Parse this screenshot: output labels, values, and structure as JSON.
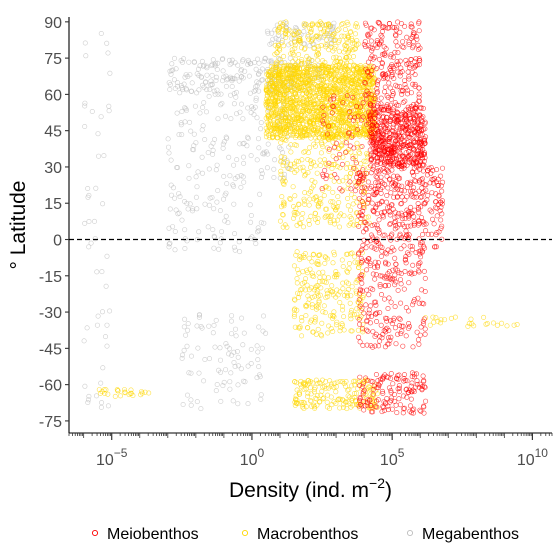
{
  "chart_data": {
    "type": "scatter",
    "title": "",
    "xlabel": "Density (ind. m",
    "xlabel_superscript": "−2",
    "xlabel_suffix": ")",
    "ylabel": "° Latitude",
    "x_scale": "log10",
    "xlim": [
      3e-07,
      50000000000.0
    ],
    "ylim": [
      -80,
      92
    ],
    "x_ticks": [
      {
        "value": 1e-05,
        "base": "10",
        "exp": "−5"
      },
      {
        "value": 1,
        "base": "10",
        "exp": "0"
      },
      {
        "value": 100000,
        "base": "10",
        "exp": "5"
      },
      {
        "value": 10000000000,
        "base": "10",
        "exp": "10"
      }
    ],
    "y_ticks": [
      90,
      75,
      60,
      45,
      30,
      15,
      0,
      -15,
      -30,
      -45,
      -60,
      -75
    ],
    "reference_line": {
      "y": 0,
      "style": "dashed",
      "color": "#000000"
    },
    "grid": false,
    "legend_position": "bottom",
    "series": [
      {
        "name": "Meiobenthos",
        "color": "#ff0000",
        "marker": "open-circle",
        "clusters": [
          {
            "log10_x_min": 4.2,
            "log10_x_max": 6.2,
            "lat_min": 30,
            "lat_max": 55,
            "count": 520
          },
          {
            "log10_x_min": 3.8,
            "log10_x_max": 6.8,
            "lat_min": -5,
            "lat_max": 30,
            "count": 340
          },
          {
            "log10_x_min": 4.0,
            "log10_x_max": 6.0,
            "lat_min": 55,
            "lat_max": 90,
            "count": 220
          },
          {
            "log10_x_min": 3.8,
            "log10_x_max": 6.2,
            "lat_min": -45,
            "lat_max": -5,
            "count": 200
          },
          {
            "log10_x_min": 3.8,
            "log10_x_max": 6.2,
            "lat_min": -72,
            "lat_max": -55,
            "count": 140
          },
          {
            "log10_x_min": 2.5,
            "log10_x_max": 4.5,
            "lat_min": 20,
            "lat_max": 60,
            "count": 80
          }
        ]
      },
      {
        "name": "Macrobenthos",
        "color": "#ffd700",
        "marker": "open-circle",
        "clusters": [
          {
            "log10_x_min": 0.5,
            "log10_x_max": 4.4,
            "lat_min": 42,
            "lat_max": 72,
            "count": 1600
          },
          {
            "log10_x_min": 0.8,
            "log10_x_max": 3.8,
            "lat_min": 72,
            "lat_max": 90,
            "count": 200
          },
          {
            "log10_x_min": 1.0,
            "log10_x_max": 4.2,
            "lat_min": 5,
            "lat_max": 42,
            "count": 260
          },
          {
            "log10_x_min": 1.5,
            "log10_x_max": 4.0,
            "lat_min": -40,
            "lat_max": -5,
            "count": 220
          },
          {
            "log10_x_min": 1.5,
            "log10_x_max": 4.5,
            "lat_min": -70,
            "lat_max": -58,
            "count": 170
          },
          {
            "log10_x_min": -5.5,
            "log10_x_max": -3.5,
            "lat_min": -65,
            "lat_max": -62,
            "count": 25
          },
          {
            "log10_x_min": 6.0,
            "log10_x_max": 9.5,
            "lat_min": -36,
            "lat_max": -32,
            "count": 25
          }
        ]
      },
      {
        "name": "Megabenthos",
        "color": "#bebebe",
        "marker": "open-circle",
        "clusters": [
          {
            "log10_x_min": -3.0,
            "log10_x_max": 2.5,
            "lat_min": 60,
            "lat_max": 75,
            "count": 220
          },
          {
            "log10_x_min": -3.0,
            "log10_x_max": 1.5,
            "lat_min": 25,
            "lat_max": 60,
            "count": 140
          },
          {
            "log10_x_min": -3.0,
            "log10_x_max": 0.5,
            "lat_min": -5,
            "lat_max": 25,
            "count": 80
          },
          {
            "log10_x_min": -2.5,
            "log10_x_max": 0.5,
            "lat_min": -70,
            "lat_max": -30,
            "count": 90
          },
          {
            "log10_x_min": 0.5,
            "log10_x_max": 3.0,
            "lat_min": 80,
            "lat_max": 90,
            "count": 60
          },
          {
            "log10_x_min": -6.0,
            "log10_x_max": -5.0,
            "lat_min": -70,
            "lat_max": 90,
            "count": 50
          }
        ]
      }
    ]
  }
}
